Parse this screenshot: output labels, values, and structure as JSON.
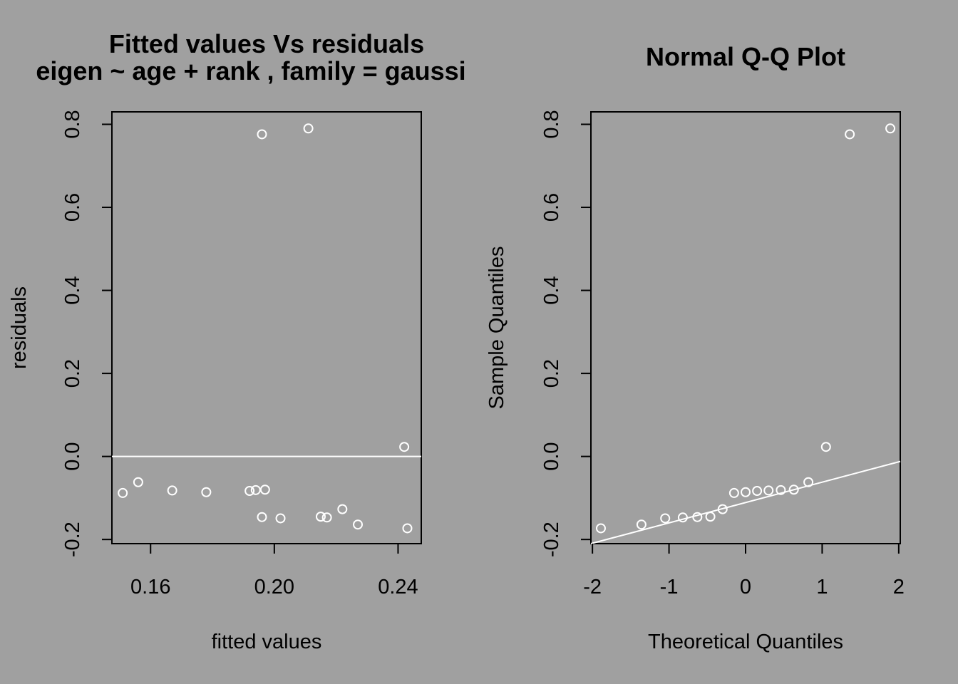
{
  "chart_data": [
    {
      "type": "scatter",
      "title": "Fitted values Vs residuals",
      "subtitle": "eigen ~ age + rank , family = gaussi",
      "xlabel": "fitted values",
      "ylabel": "residuals",
      "xlim": [
        0.1475,
        0.2475
      ],
      "ylim": [
        -0.21,
        0.83
      ],
      "xticks": [
        0.16,
        0.2,
        0.24
      ],
      "xtick_labels": [
        "0.16",
        "0.20",
        "0.24"
      ],
      "yticks": [
        -0.2,
        0.0,
        0.2,
        0.4,
        0.6,
        0.8
      ],
      "ytick_labels": [
        "-0.2",
        "0.0",
        "0.2",
        "0.4",
        "0.6",
        "0.8"
      ],
      "hline": 0,
      "points": [
        {
          "x": 0.151,
          "y": -0.088
        },
        {
          "x": 0.156,
          "y": -0.062
        },
        {
          "x": 0.167,
          "y": -0.082
        },
        {
          "x": 0.178,
          "y": -0.086
        },
        {
          "x": 0.192,
          "y": -0.083
        },
        {
          "x": 0.194,
          "y": -0.081
        },
        {
          "x": 0.196,
          "y": 0.776
        },
        {
          "x": 0.196,
          "y": -0.146
        },
        {
          "x": 0.197,
          "y": -0.08
        },
        {
          "x": 0.202,
          "y": -0.149
        },
        {
          "x": 0.211,
          "y": 0.79
        },
        {
          "x": 0.215,
          "y": -0.145
        },
        {
          "x": 0.217,
          "y": -0.147
        },
        {
          "x": 0.222,
          "y": -0.127
        },
        {
          "x": 0.227,
          "y": -0.164
        },
        {
          "x": 0.242,
          "y": 0.023
        },
        {
          "x": 0.243,
          "y": -0.173
        }
      ],
      "grid": false
    },
    {
      "type": "scatter",
      "title": "Normal Q-Q Plot",
      "xlabel": "Theoretical Quantiles",
      "ylabel": "Sample Quantiles",
      "xlim": [
        -2.02,
        2.02
      ],
      "ylim": [
        -0.21,
        0.83
      ],
      "xticks": [
        -2,
        -1,
        0,
        1,
        2
      ],
      "xtick_labels": [
        "-2",
        "-1",
        "0",
        "1",
        "2"
      ],
      "yticks": [
        -0.2,
        0.0,
        0.2,
        0.4,
        0.6,
        0.8
      ],
      "ytick_labels": [
        "-0.2",
        "0.0",
        "0.2",
        "0.4",
        "0.6",
        "0.8"
      ],
      "qqline": {
        "x1": -2.02,
        "y1": -0.21,
        "x2": 2.02,
        "y2": -0.012
      },
      "points": [
        {
          "x": -1.89,
          "y": -0.173
        },
        {
          "x": -1.36,
          "y": -0.164
        },
        {
          "x": -1.05,
          "y": -0.149
        },
        {
          "x": -0.82,
          "y": -0.147
        },
        {
          "x": -0.63,
          "y": -0.146
        },
        {
          "x": -0.46,
          "y": -0.145
        },
        {
          "x": -0.3,
          "y": -0.127
        },
        {
          "x": -0.15,
          "y": -0.088
        },
        {
          "x": 0.0,
          "y": -0.086
        },
        {
          "x": 0.15,
          "y": -0.083
        },
        {
          "x": 0.3,
          "y": -0.082
        },
        {
          "x": 0.46,
          "y": -0.081
        },
        {
          "x": 0.63,
          "y": -0.08
        },
        {
          "x": 0.82,
          "y": -0.062
        },
        {
          "x": 1.05,
          "y": 0.023
        },
        {
          "x": 1.36,
          "y": 0.776
        },
        {
          "x": 1.89,
          "y": 0.79
        }
      ],
      "grid": false
    }
  ]
}
